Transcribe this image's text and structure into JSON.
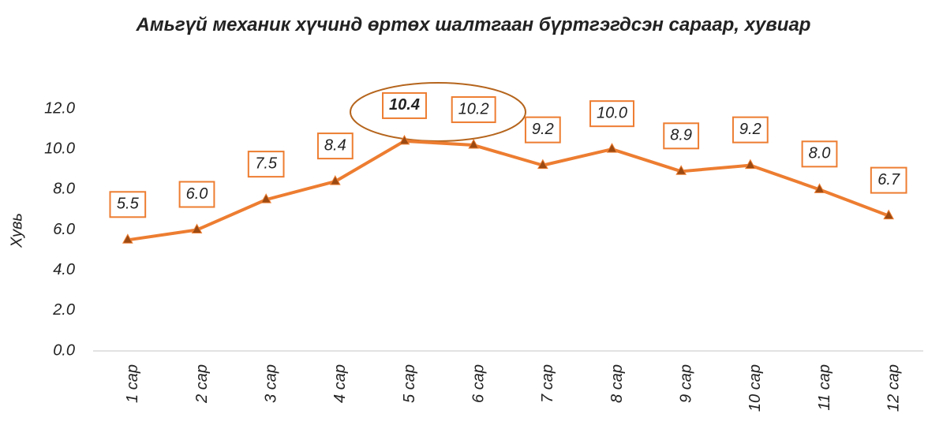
{
  "chart_data": {
    "type": "line",
    "title": "Амьгүй механик хүчинд өртөх шалтгаан бүртгэгдсэн сараар, хувиар",
    "ylabel": "Хувь",
    "categories": [
      "1 сар",
      "2 сар",
      "3 сар",
      "4 сар",
      "5 сар",
      "6 сар",
      "7 сар",
      "8 сар",
      "9 сар",
      "10 сар",
      "11 сар",
      "12 сар"
    ],
    "series": [
      {
        "name": "Хувь",
        "color": "#ed7d31",
        "values": [
          5.5,
          6.0,
          7.5,
          8.4,
          10.4,
          10.2,
          9.2,
          10.0,
          8.9,
          9.2,
          8.0,
          6.7
        ],
        "value_labels": [
          "5.5",
          "6.0",
          "7.5",
          "8.4",
          "10.4",
          "10.2",
          "9.2",
          "10.0",
          "8.9",
          "9.2",
          "8.0",
          "6.7"
        ]
      }
    ],
    "marker_color": "#9c4a12",
    "highlight_color": "#ff0000",
    "ylim": [
      0,
      12
    ],
    "yticks": [
      {
        "value": 0,
        "label": "0.0"
      },
      {
        "value": 2,
        "label": "2.0"
      },
      {
        "value": 4,
        "label": "4.0"
      },
      {
        "value": 6,
        "label": "6.0"
      },
      {
        "value": 8,
        "label": "8.0"
      },
      {
        "value": 10,
        "label": "10.0"
      },
      {
        "value": 12,
        "label": "12.0"
      }
    ],
    "grid": false
  }
}
